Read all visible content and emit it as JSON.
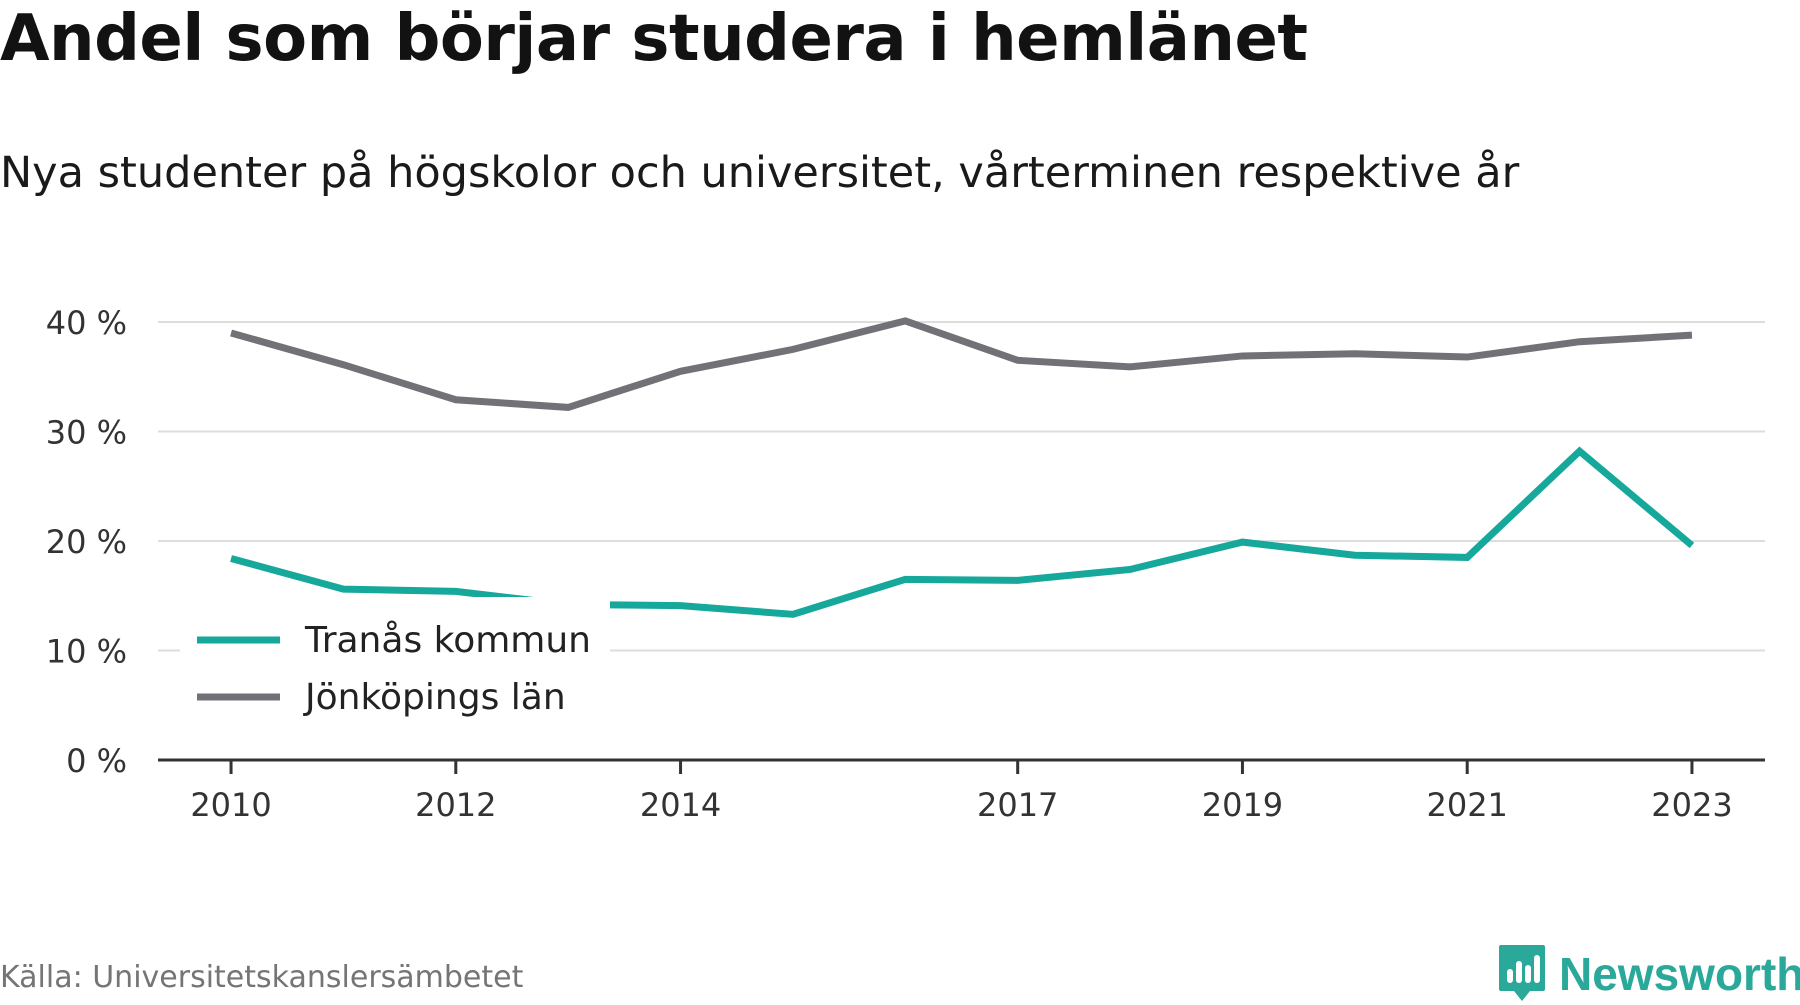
{
  "title": "Andel som börjar studera i hemlänet",
  "subtitle": "Nya studenter på högskolor och universitet, vårterminen respektive år",
  "source": "Källa: Universitetskanslersämbetet",
  "brand": {
    "name": "Newsworthy",
    "icon": "newsworthy-logo-icon",
    "color": "#2aa89a"
  },
  "chart_data": {
    "type": "line",
    "x": [
      2010,
      2011,
      2012,
      2013,
      2014,
      2015,
      2016,
      2017,
      2018,
      2019,
      2020,
      2021,
      2022,
      2023
    ],
    "x_tick_labels": [
      "2010",
      "2012",
      "2014",
      "2017",
      "2019",
      "2021",
      "2023"
    ],
    "y_tick_labels": [
      "0 %",
      "10 %",
      "20 %",
      "30 %",
      "40 %"
    ],
    "y_ticks": [
      0,
      10,
      20,
      30,
      40
    ],
    "ylim": [
      0,
      40
    ],
    "xlim": [
      2009.35,
      2023.65
    ],
    "grid": true,
    "legend_position": "bottom-left",
    "series": [
      {
        "name": "Tranås kommun",
        "color": "#16a89b",
        "values": [
          18.4,
          15.6,
          15.4,
          14.2,
          14.1,
          13.3,
          16.5,
          16.4,
          17.4,
          19.9,
          18.7,
          18.5,
          28.2,
          19.6
        ]
      },
      {
        "name": "Jönköpings län",
        "color": "#727178",
        "values": [
          39.0,
          36.1,
          32.9,
          32.2,
          35.5,
          37.5,
          40.1,
          36.5,
          35.9,
          36.9,
          37.1,
          36.8,
          38.2,
          38.8
        ]
      }
    ]
  }
}
